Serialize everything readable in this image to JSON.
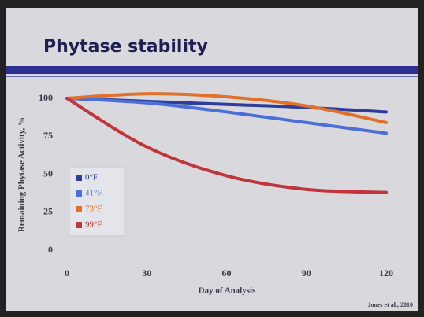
{
  "chart_data": {
    "type": "line",
    "title": "Phytase stability",
    "x_label": "Day of Analysis",
    "y_label": "Remaining Phytase Activity, %",
    "source": "Jones et al., 2010",
    "x": [
      0,
      30,
      60,
      90,
      120
    ],
    "series": [
      {
        "name": "0°F",
        "color": "#2e3c9c",
        "values": [
          100,
          98,
          96,
          94,
          91
        ]
      },
      {
        "name": "41°F",
        "color": "#4a6fd8",
        "values": [
          100,
          97,
          91,
          84,
          77
        ]
      },
      {
        "name": "73°F",
        "color": "#e0702a",
        "values": [
          100,
          103,
          101,
          95,
          84
        ]
      },
      {
        "name": "99°F",
        "color": "#c0343a",
        "values": [
          100,
          68,
          49,
          40,
          38
        ]
      }
    ],
    "xlim": [
      0,
      120
    ],
    "xticks": [
      0,
      30,
      60,
      90,
      120
    ],
    "ylim": [
      0,
      100
    ],
    "yticks": [
      0,
      25,
      50,
      75,
      100
    ],
    "grid": false,
    "legend": "lower-left"
  }
}
